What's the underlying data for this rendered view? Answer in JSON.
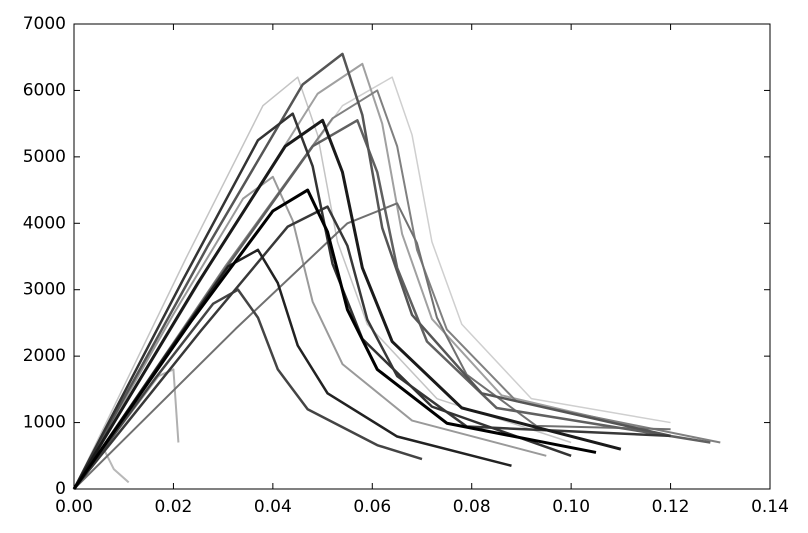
{
  "chart_data": {
    "type": "line",
    "xlim": [
      0,
      0.14
    ],
    "ylim": [
      0,
      7000
    ],
    "xticks": [
      {
        "value": 0,
        "label": "0.00"
      },
      {
        "value": 0.02,
        "label": "0.02"
      },
      {
        "value": 0.04,
        "label": "0.04"
      },
      {
        "value": 0.06,
        "label": "0.06"
      },
      {
        "value": 0.08,
        "label": "0.08"
      },
      {
        "value": 0.1,
        "label": "0.10"
      },
      {
        "value": 0.12,
        "label": "0.12"
      },
      {
        "value": 0.14,
        "label": "0.14"
      }
    ],
    "yticks": [
      0,
      1000,
      2000,
      3000,
      4000,
      5000,
      6000,
      7000
    ],
    "series": [
      {
        "color": "#cfcfcf",
        "width": 1.5,
        "x": [
          0,
          0.032,
          0.054,
          0.064,
          0.068,
          0.072,
          0.078,
          0.092,
          0.12
        ],
        "values": [
          0,
          3470,
          5770,
          6200,
          5330,
          3720,
          2480,
          1360,
          1000
        ]
      },
      {
        "color": "#c4c4c4",
        "width": 1.5,
        "x": [
          0,
          0.0225,
          0.038,
          0.045,
          0.049,
          0.053,
          0.059,
          0.073,
          0.1
        ],
        "values": [
          0,
          3470,
          5770,
          6200,
          5330,
          3720,
          2480,
          1360,
          700
        ]
      },
      {
        "color": "#b0b0b0",
        "width": 2,
        "x": [
          0,
          0.01,
          0.017,
          0.02,
          0.021
        ],
        "values": [
          0,
          1000,
          1700,
          1800,
          700
        ]
      },
      {
        "color": "#b8b8b8",
        "width": 2,
        "x": [
          0,
          0.004,
          0.006,
          0.008,
          0.011
        ],
        "values": [
          0,
          500,
          600,
          300,
          100
        ]
      },
      {
        "color": "#a0a0a0",
        "width": 2,
        "x": [
          0,
          0.029,
          0.049,
          0.058,
          0.062,
          0.066,
          0.072,
          0.086,
          0.115
        ],
        "values": [
          0,
          3580,
          5950,
          6400,
          5500,
          3840,
          2560,
          1410,
          900
        ]
      },
      {
        "color": "#9a9a9a",
        "width": 2,
        "x": [
          0,
          0.02,
          0.034,
          0.04,
          0.044,
          0.048,
          0.054,
          0.068,
          0.095
        ],
        "values": [
          0,
          2630,
          4370,
          4700,
          4040,
          2820,
          1880,
          1030,
          500
        ]
      },
      {
        "color": "#808080",
        "width": 2,
        "x": [
          0,
          0.0305,
          0.052,
          0.061,
          0.065,
          0.069,
          0.075,
          0.089,
          0.13
        ],
        "values": [
          0,
          3360,
          5580,
          6000,
          5160,
          3600,
          2400,
          1320,
          700
        ]
      },
      {
        "color": "#707070",
        "width": 2,
        "x": [
          0,
          0.0325,
          0.055,
          0.065,
          0.069,
          0.073,
          0.079,
          0.093,
          0.12
        ],
        "values": [
          0,
          2410,
          4000,
          4300,
          3700,
          2580,
          1720,
          950,
          900
        ]
      },
      {
        "color": "#606060",
        "width": 2.5,
        "x": [
          0,
          0.0285,
          0.048,
          0.057,
          0.061,
          0.065,
          0.071,
          0.085,
          0.128
        ],
        "values": [
          0,
          3110,
          5160,
          5550,
          4770,
          3330,
          2220,
          1220,
          700
        ]
      },
      {
        "color": "#555555",
        "width": 2.5,
        "x": [
          0,
          0.027,
          0.046,
          0.054,
          0.058,
          0.062,
          0.068,
          0.082,
          0.12
        ],
        "values": [
          0,
          3670,
          6090,
          6550,
          5630,
          3930,
          2620,
          1440,
          800
        ]
      },
      {
        "color": "#444444",
        "width": 2.5,
        "x": [
          0,
          0.0165,
          0.028,
          0.033,
          0.037,
          0.041,
          0.047,
          0.061,
          0.07
        ],
        "values": [
          0,
          1680,
          2790,
          3000,
          2580,
          1800,
          1200,
          660,
          450
        ]
      },
      {
        "color": "#383838",
        "width": 2.5,
        "x": [
          0,
          0.0255,
          0.043,
          0.051,
          0.055,
          0.059,
          0.065,
          0.079,
          0.12
        ],
        "values": [
          0,
          2380,
          3950,
          4250,
          3660,
          2550,
          1700,
          940,
          800
        ]
      },
      {
        "color": "#333333",
        "width": 2.5,
        "x": [
          0,
          0.022,
          0.037,
          0.044,
          0.048,
          0.052,
          0.058,
          0.072,
          0.1
        ],
        "values": [
          0,
          3160,
          5250,
          5650,
          4860,
          3390,
          2260,
          1240,
          500
        ]
      },
      {
        "color": "#222222",
        "width": 2.5,
        "x": [
          0,
          0.0185,
          0.031,
          0.037,
          0.041,
          0.045,
          0.051,
          0.065,
          0.088
        ],
        "values": [
          0,
          2020,
          3350,
          3600,
          3100,
          2160,
          1440,
          790,
          350
        ]
      },
      {
        "color": "#1a1a1a",
        "width": 3,
        "x": [
          0,
          0.025,
          0.0425,
          0.05,
          0.054,
          0.058,
          0.064,
          0.078,
          0.11
        ],
        "values": [
          0,
          3110,
          5160,
          5550,
          4770,
          3330,
          2220,
          1220,
          600
        ]
      },
      {
        "color": "#000000",
        "width": 3,
        "x": [
          0,
          0.0235,
          0.04,
          0.047,
          0.051,
          0.055,
          0.061,
          0.075,
          0.105
        ],
        "values": [
          0,
          2520,
          4185,
          4500,
          3870,
          2700,
          1800,
          990,
          550
        ]
      }
    ]
  }
}
